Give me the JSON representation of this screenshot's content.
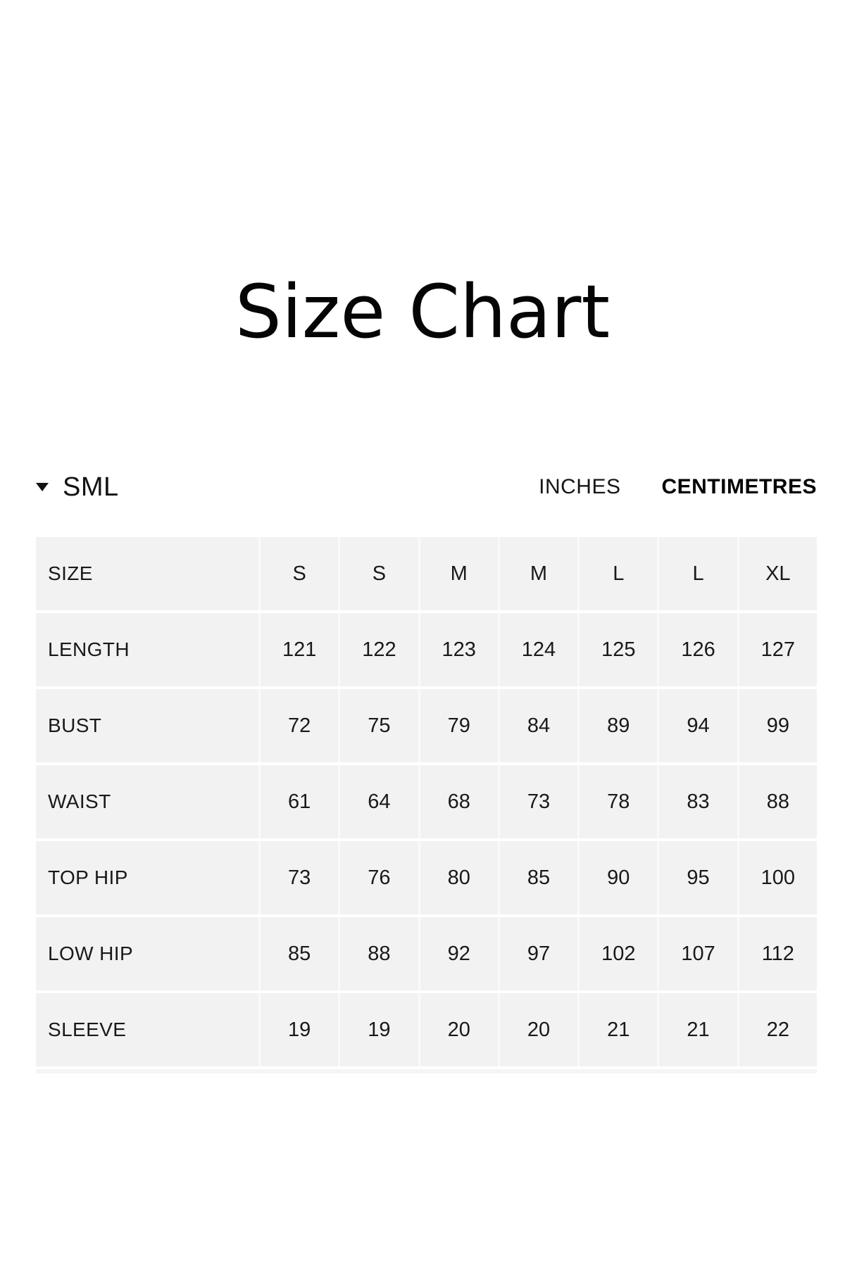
{
  "page": {
    "title": "Size Chart",
    "background": "#ffffff"
  },
  "controls": {
    "size_group": {
      "label": "SML",
      "icon": "caret-down"
    },
    "units": {
      "options": [
        "INCHES",
        "CENTIMETRES"
      ],
      "selected": "CENTIMETRES"
    }
  },
  "table": {
    "header": {
      "label": "SIZE",
      "columns": [
        "S",
        "S",
        "M",
        "M",
        "L",
        "L",
        "XL"
      ]
    },
    "rows": [
      {
        "label": "LENGTH",
        "values": [
          "121",
          "122",
          "123",
          "124",
          "125",
          "126",
          "127"
        ]
      },
      {
        "label": "BUST",
        "values": [
          "72",
          "75",
          "79",
          "84",
          "89",
          "94",
          "99"
        ]
      },
      {
        "label": "WAIST",
        "values": [
          "61",
          "64",
          "68",
          "73",
          "78",
          "83",
          "88"
        ]
      },
      {
        "label": "TOP HIP",
        "values": [
          "73",
          "76",
          "80",
          "85",
          "90",
          "95",
          "100"
        ]
      },
      {
        "label": "LOW HIP",
        "values": [
          "85",
          "88",
          "92",
          "97",
          "102",
          "107",
          "112"
        ]
      },
      {
        "label": "SLEEVE",
        "values": [
          "19",
          "19",
          "20",
          "20",
          "21",
          "21",
          "22"
        ]
      }
    ]
  },
  "colors": {
    "row_background": "#f2f2f2",
    "cell_divider": "#fafafa",
    "text": "#1a1a1a"
  }
}
